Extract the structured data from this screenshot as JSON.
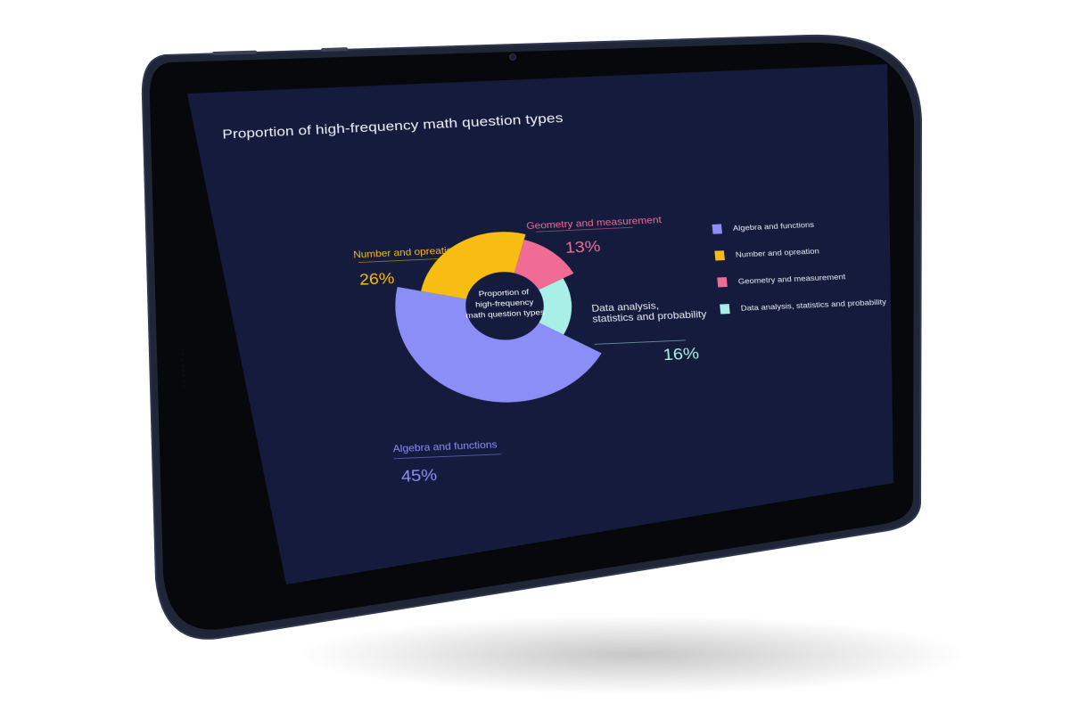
{
  "chart_data": {
    "type": "pie",
    "title": "Proportion of high-frequency math question types",
    "center_label": [
      "Proportion of",
      "high-frequency",
      "math question types"
    ],
    "slices": [
      {
        "label": "Geometry and measurement",
        "value": 13,
        "display": "13%",
        "color": "#f06c94"
      },
      {
        "label": "Data analysis, statistics and probability",
        "label_lines": [
          "Data analysis,",
          "statistics and probability"
        ],
        "value": 16,
        "display": "16%",
        "color": "#a8f0e7"
      },
      {
        "label": "Algebra and functions",
        "value": 45,
        "display": "45%",
        "color": "#8c8ef7"
      },
      {
        "label": "Number and opreation",
        "value": 26,
        "display": "26%",
        "color": "#f7bd12"
      }
    ],
    "legend": {
      "position": "right",
      "items": [
        {
          "label": "Algebra and functions",
          "color": "#8c8ef7"
        },
        {
          "label": "Number and opreation",
          "color": "#f7bd12"
        },
        {
          "label": "Geometry and measurement",
          "color": "#f06c94"
        },
        {
          "label": "Data analysis, statistics and probability",
          "color": "#a8f0e7"
        }
      ]
    },
    "background_color": "#141b3d"
  }
}
